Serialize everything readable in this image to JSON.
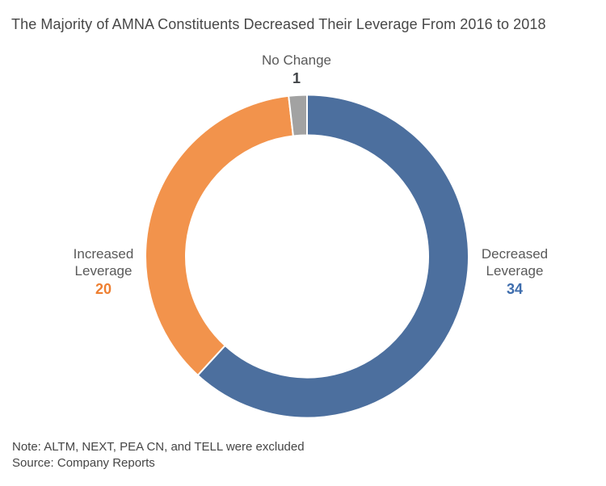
{
  "title": "The Majority of AMNA Constituents Decreased Their Leverage From 2016 to 2018",
  "chart_data": {
    "type": "pie",
    "subtype": "donut",
    "title": "The Majority of AMNA Constituents Decreased Their Leverage From 2016 to 2018",
    "total": 55,
    "start_angle_deg": 0,
    "direction": "clockwise",
    "inner_radius_ratio": 0.75,
    "segments": [
      {
        "label": "Decreased Leverage",
        "value": 34,
        "color": "#4c6f9e",
        "value_color": "#3e6dad"
      },
      {
        "label": "Increased Leverage",
        "value": 20,
        "color": "#f2934c",
        "value_color": "#ee7f31"
      },
      {
        "label": "No Change",
        "value": 1,
        "color": "#a2a2a2",
        "value_color": "#404347"
      }
    ]
  },
  "labels": {
    "no_change_line1": "No Change",
    "decreased_line1": "Decreased",
    "decreased_line2": "Leverage",
    "increased_line1": "Increased",
    "increased_line2": "Leverage"
  },
  "notes": {
    "note": "Note: ALTM, NEXT, PEA CN, and TELL were excluded",
    "source": "Source: Company Reports"
  }
}
